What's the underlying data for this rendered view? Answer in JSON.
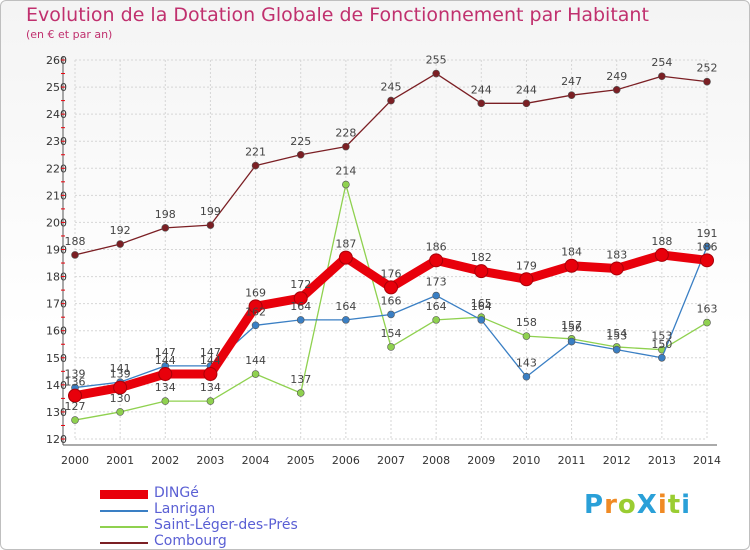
{
  "header": {
    "title": "Evolution de la Dotation Globale de Fonctionnement par Habitant",
    "subtitle": "(en € et par an)"
  },
  "logo": {
    "text": "ProXiti",
    "colors": [
      "#2aa0d8",
      "#f08a24",
      "#9acd32"
    ]
  },
  "chart_data": {
    "type": "line",
    "title": "Evolution de la Dotation Globale de Fonctionnement par Habitant",
    "ylabel": "(en € et par an)",
    "xlabel": "",
    "ylim": [
      120,
      260
    ],
    "yticks": [
      120,
      130,
      140,
      150,
      160,
      170,
      180,
      190,
      200,
      210,
      220,
      230,
      240,
      250,
      260
    ],
    "x": [
      "2000",
      "2001",
      "2002",
      "2003",
      "2004",
      "2005",
      "2006",
      "2007",
      "2008",
      "2009",
      "2010",
      "2011",
      "2012",
      "2013",
      "2014"
    ],
    "grid": true,
    "legend_position": "bottom-left",
    "series": [
      {
        "name": "Combourg",
        "color": "#7b1f24",
        "values": [
          188,
          192,
          198,
          199,
          221,
          225,
          228,
          245,
          255,
          244,
          244,
          247,
          249,
          254,
          252
        ]
      },
      {
        "name": "Saint-Léger-des-Prés",
        "color": "#8fd14f",
        "values": [
          127,
          130,
          134,
          134,
          144,
          137,
          214,
          154,
          164,
          165,
          158,
          157,
          154,
          153,
          163
        ]
      },
      {
        "name": "Lanrigan",
        "color": "#3a7fc4",
        "values": [
          139,
          141,
          147,
          147,
          162,
          164,
          164,
          166,
          173,
          164,
          143,
          156,
          153,
          150,
          191
        ]
      },
      {
        "name": "DINGé",
        "color": "#e8000b",
        "values": [
          136,
          139,
          144,
          144,
          169,
          172,
          187,
          176,
          186,
          182,
          179,
          184,
          183,
          188,
          186
        ]
      }
    ]
  }
}
